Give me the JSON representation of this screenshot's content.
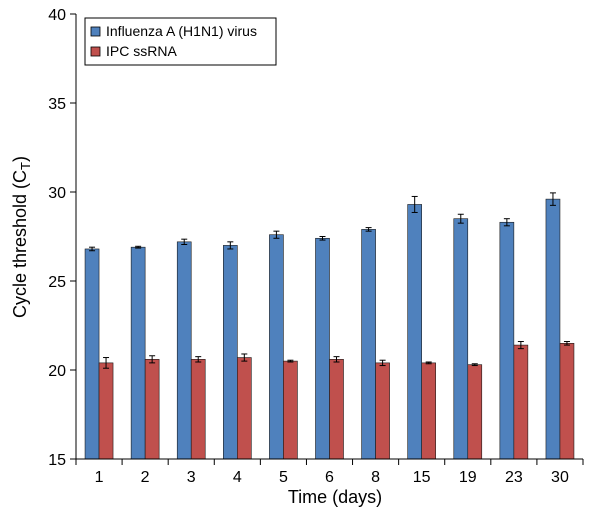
{
  "chart_data": {
    "type": "bar",
    "xlabel": "Time (days)",
    "ylabel": {
      "main": "Cycle threshold (C",
      "sub": "T",
      "close": ")"
    },
    "ylim": [
      15,
      40
    ],
    "yticks": [
      15,
      20,
      25,
      30,
      35,
      40
    ],
    "categories": [
      "1",
      "2",
      "3",
      "4",
      "5",
      "6",
      "8",
      "15",
      "19",
      "23",
      "30"
    ],
    "series": [
      {
        "name": "Influenza A (H1N1) virus",
        "color": "#4f81bd",
        "values": [
          26.8,
          26.9,
          27.2,
          27.0,
          27.6,
          27.4,
          27.9,
          29.3,
          28.5,
          28.3,
          29.6
        ],
        "errors": [
          0.1,
          0.05,
          0.15,
          0.2,
          0.2,
          0.1,
          0.1,
          0.45,
          0.25,
          0.2,
          0.35
        ]
      },
      {
        "name": "IPC ssRNA",
        "color": "#c0504d",
        "values": [
          20.4,
          20.6,
          20.6,
          20.7,
          20.5,
          20.6,
          20.4,
          20.4,
          20.3,
          21.4,
          21.5
        ],
        "errors": [
          0.3,
          0.2,
          0.15,
          0.2,
          0.05,
          0.15,
          0.15,
          0.05,
          0.05,
          0.2,
          0.1
        ]
      }
    ],
    "legend": "top-left",
    "grid": false
  }
}
